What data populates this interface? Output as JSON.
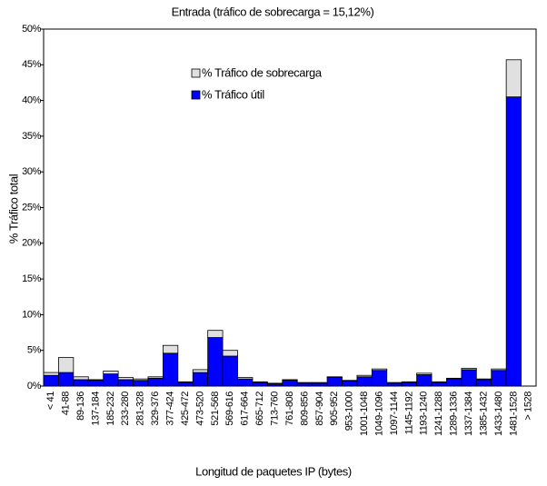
{
  "chart_data": {
    "type": "stacked-bar",
    "title": "Entrada (tráfico de sobrecarga = 15,12%)",
    "y_label": "% Tráfico total",
    "x_label": "Longitud de paquetes IP (bytes)",
    "categories": [
      "< 41",
      "41-88",
      "89-136",
      "137-184",
      "185-232",
      "233-280",
      "281-328",
      "329-376",
      "377-424",
      "425-472",
      "473-520",
      "521-568",
      "569-616",
      "617-664",
      "665-712",
      "713-760",
      "761-808",
      "809-856",
      "857-904",
      "905-952",
      "953-1000",
      "1001-1048",
      "1049-1096",
      "1097-1144",
      "1145-1192",
      "1193-1240",
      "1241-1288",
      "1289-1336",
      "1337-1384",
      "1385-1432",
      "1433-1480",
      "1481-1528",
      "> 1528"
    ],
    "series": [
      {
        "name": "% Tráfico útil",
        "color": "#0000ff",
        "values": [
          1.5,
          1.9,
          0.9,
          0.8,
          1.7,
          0.9,
          0.8,
          1.1,
          4.6,
          0.5,
          1.9,
          6.8,
          4.2,
          1.0,
          0.5,
          0.3,
          0.8,
          0.4,
          0.4,
          1.2,
          0.7,
          1.3,
          2.2,
          0.4,
          0.5,
          1.6,
          0.5,
          1.0,
          2.3,
          0.9,
          2.2,
          40.5,
          0
        ]
      },
      {
        "name": "% Tráfico de sobrecarga",
        "color": "#e0e0e0",
        "values": [
          0.4,
          2.1,
          0.4,
          0.1,
          0.4,
          0.3,
          0.2,
          0.2,
          1.1,
          0.1,
          0.4,
          1.0,
          0.8,
          0.2,
          0.1,
          0.1,
          0.1,
          0.1,
          0.1,
          0.1,
          0.1,
          0.2,
          0.2,
          0.1,
          0.1,
          0.2,
          0.1,
          0.1,
          0.2,
          0.1,
          0.2,
          5.2,
          0
        ]
      }
    ],
    "ylim": [
      0,
      50
    ],
    "yticks": [
      {
        "value": 0,
        "label": "0%"
      },
      {
        "value": 5,
        "label": "5%"
      },
      {
        "value": 10,
        "label": "10%"
      },
      {
        "value": 15,
        "label": "15%"
      },
      {
        "value": 20,
        "label": "20%"
      },
      {
        "value": 25,
        "label": "25%"
      },
      {
        "value": 30,
        "label": "30%"
      },
      {
        "value": 35,
        "label": "35%"
      },
      {
        "value": 40,
        "label": "40%"
      },
      {
        "value": 45,
        "label": "45%"
      },
      {
        "value": 50,
        "label": "50%"
      }
    ],
    "grid": false,
    "legend": "top-center"
  }
}
